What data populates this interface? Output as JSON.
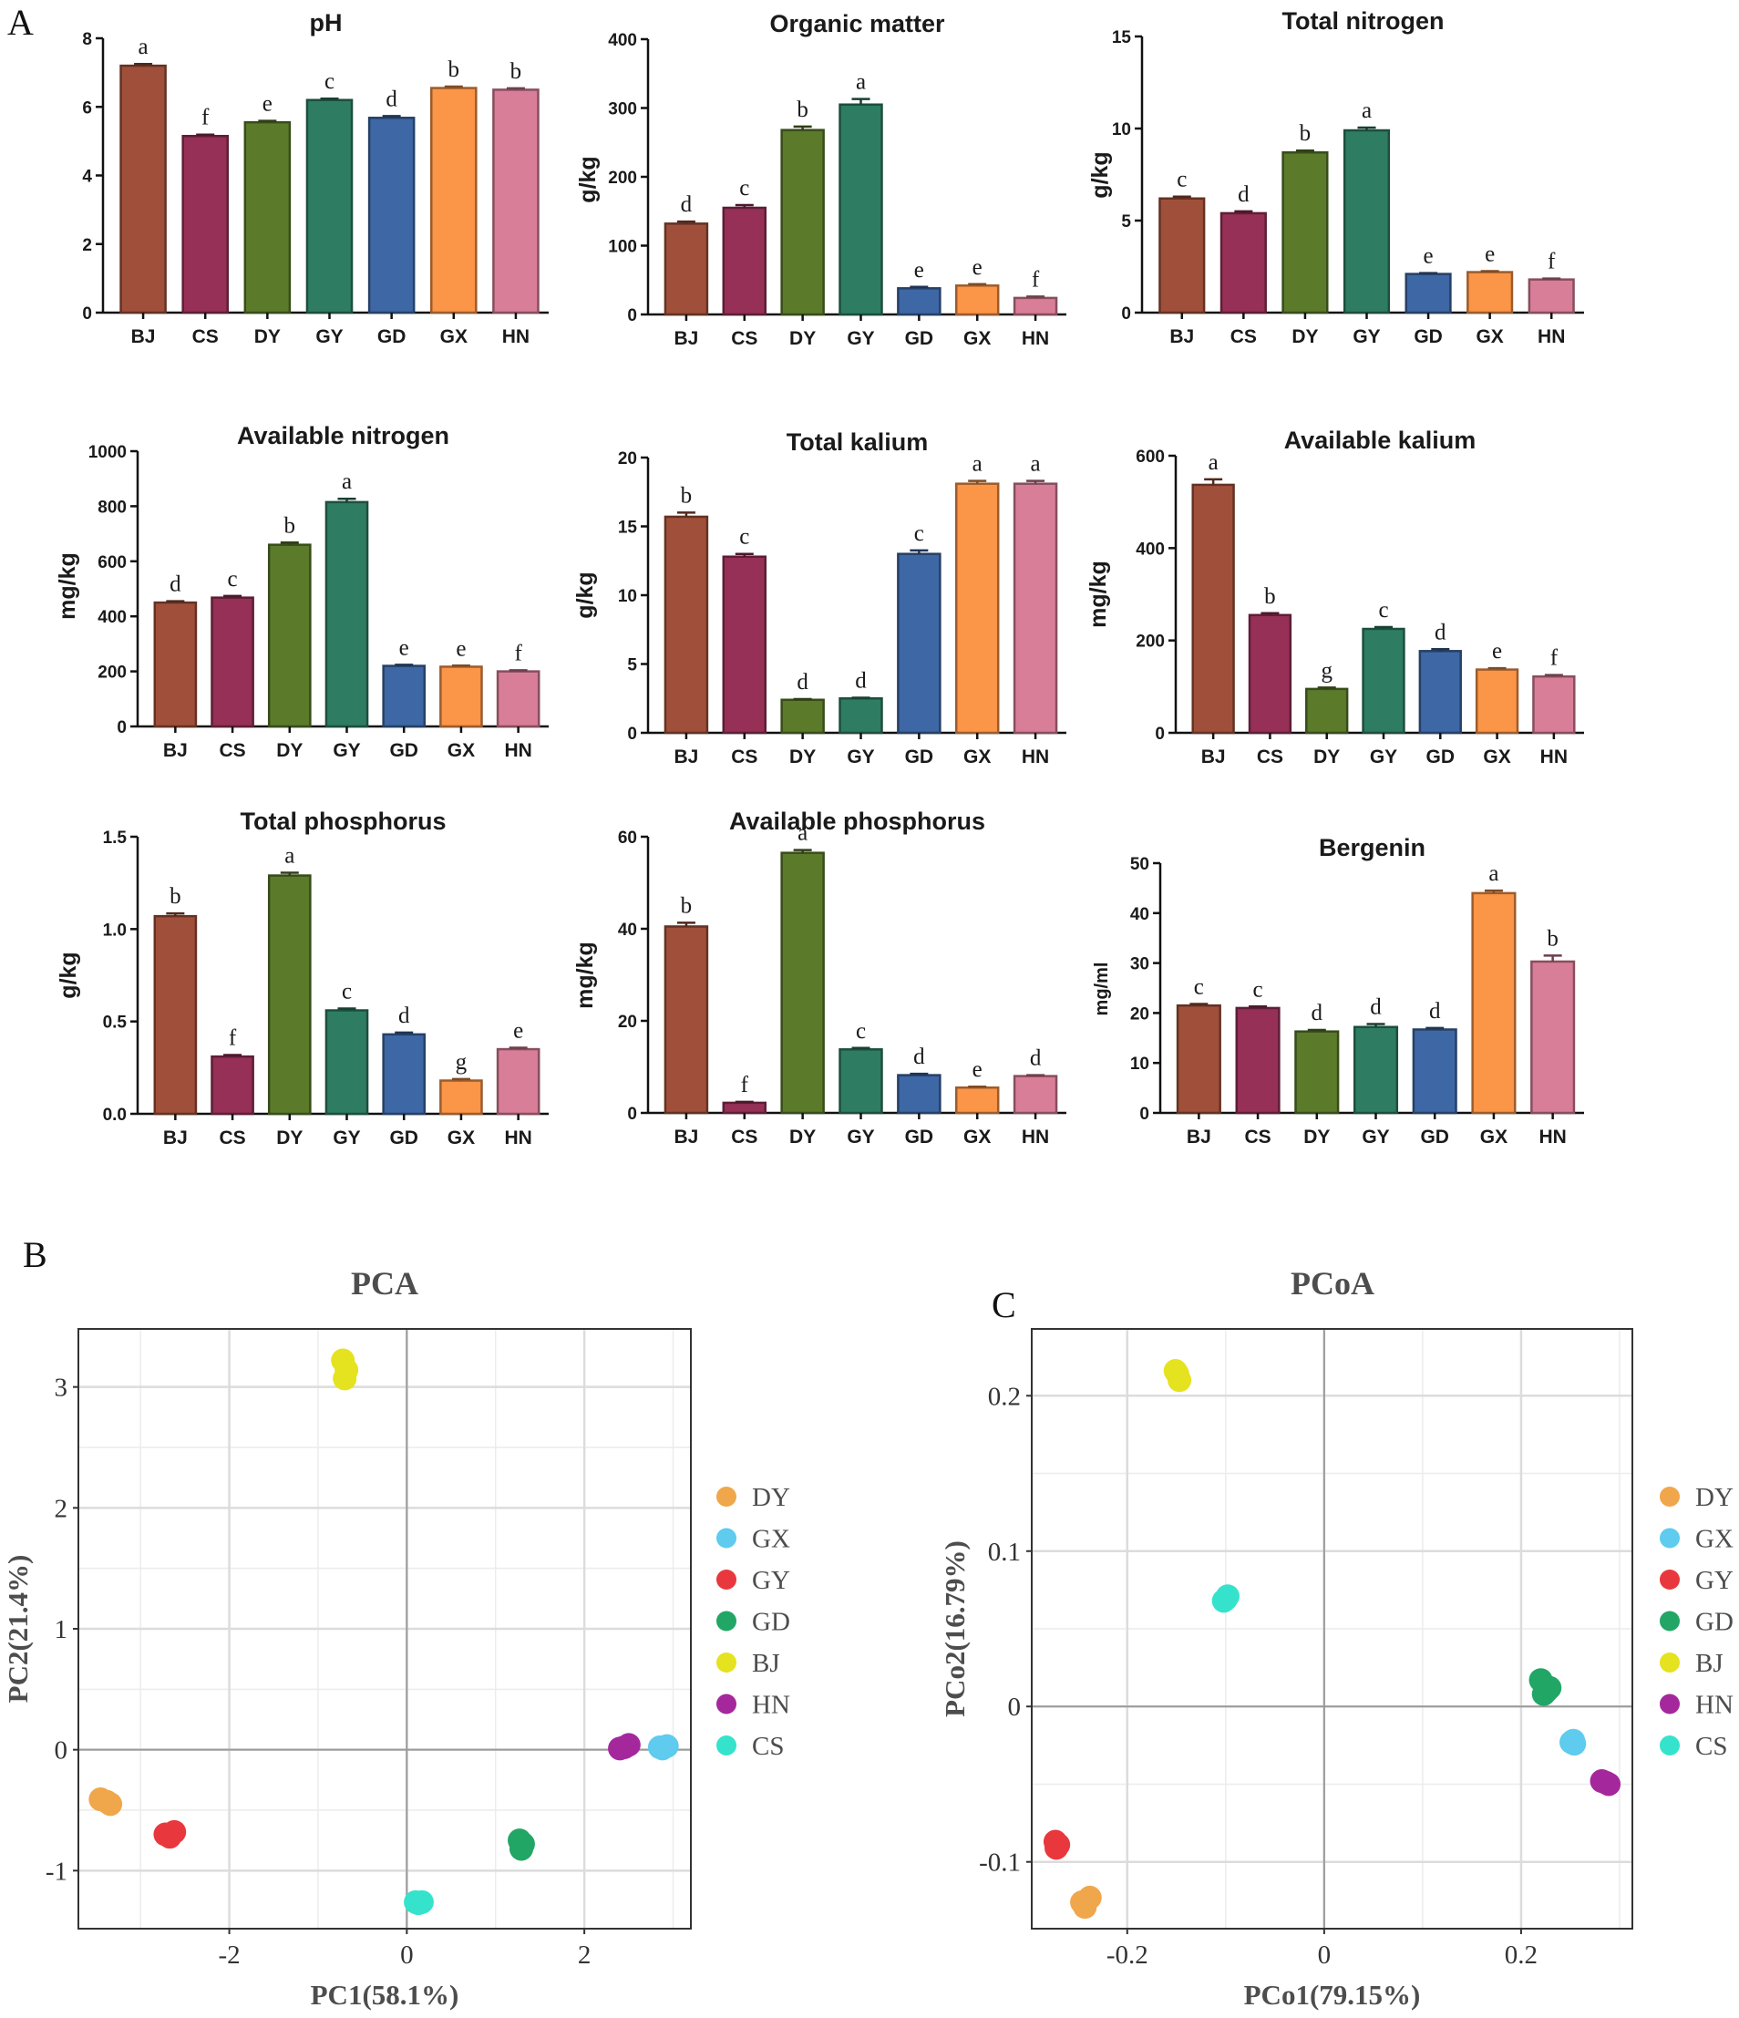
{
  "figure": {
    "panel_labels": [
      "A",
      "B",
      "C"
    ],
    "palette": {
      "BJ": "#a0503a",
      "CS": "#963057",
      "DY": "#5b7b2b",
      "GY": "#2e7d63",
      "GD": "#3e67a5",
      "GX": "#fb9548",
      "HN": "#d97e98"
    },
    "scatter_colors": {
      "DY": "#f0a64a",
      "GX": "#5ecbef",
      "GY": "#e8383d",
      "GD": "#21a665",
      "BJ": "#e5e21f",
      "HN": "#a4289c",
      "CS": "#35e3cc"
    }
  },
  "chart_data": [
    {
      "type": "bar",
      "title": "pH",
      "ylabel": "",
      "ylim": [
        0,
        8
      ],
      "yticks": [
        "0",
        "2",
        "4",
        "6",
        "8"
      ],
      "categories": [
        "BJ",
        "CS",
        "DY",
        "GY",
        "GD",
        "GX",
        "HN"
      ],
      "values": [
        7.2,
        5.15,
        5.55,
        6.2,
        5.68,
        6.55,
        6.5
      ],
      "errors": [
        0.05,
        0.04,
        0.04,
        0.04,
        0.05,
        0.04,
        0.04
      ],
      "letters": [
        "a",
        "f",
        "e",
        "c",
        "d",
        "b",
        "b"
      ]
    },
    {
      "type": "bar",
      "title": "Organic matter",
      "ylabel": "g/kg",
      "ylim": [
        0,
        400
      ],
      "yticks": [
        "0",
        "100",
        "200",
        "300",
        "400"
      ],
      "categories": [
        "BJ",
        "CS",
        "DY",
        "GY",
        "GD",
        "GX",
        "HN"
      ],
      "values": [
        132,
        155,
        268,
        305,
        38,
        42,
        24
      ],
      "errors": [
        3,
        4,
        5,
        8,
        2,
        2,
        2
      ],
      "letters": [
        "d",
        "c",
        "b",
        "a",
        "e",
        "e",
        "f"
      ]
    },
    {
      "type": "bar",
      "title": "Total nitrogen",
      "ylabel": "g/kg",
      "ylim": [
        0,
        15
      ],
      "yticks": [
        "0",
        "5",
        "10",
        "15"
      ],
      "categories": [
        "BJ",
        "CS",
        "DY",
        "GY",
        "GD",
        "GX",
        "HN"
      ],
      "values": [
        6.2,
        5.4,
        8.7,
        9.9,
        2.1,
        2.2,
        1.8
      ],
      "errors": [
        0.1,
        0.1,
        0.1,
        0.15,
        0.05,
        0.05,
        0.05
      ],
      "letters": [
        "c",
        "d",
        "b",
        "a",
        "e",
        "e",
        "f"
      ]
    },
    {
      "type": "bar",
      "title": "Available nitrogen",
      "ylabel": "mg/kg",
      "ylim": [
        0,
        1000
      ],
      "yticks": [
        "0",
        "200",
        "400",
        "600",
        "800",
        "1000"
      ],
      "categories": [
        "BJ",
        "CS",
        "DY",
        "GY",
        "GD",
        "GX",
        "HN"
      ],
      "values": [
        450,
        468,
        660,
        815,
        220,
        217,
        200
      ],
      "errors": [
        5,
        6,
        8,
        12,
        4,
        4,
        4
      ],
      "letters": [
        "d",
        "c",
        "b",
        "a",
        "e",
        "e",
        "f"
      ]
    },
    {
      "type": "bar",
      "title": "Total kalium",
      "ylabel": "g/kg",
      "ylim": [
        0,
        20
      ],
      "yticks": [
        "0",
        "5",
        "10",
        "15",
        "20"
      ],
      "categories": [
        "BJ",
        "CS",
        "DY",
        "GY",
        "GD",
        "GX",
        "HN"
      ],
      "values": [
        15.7,
        12.8,
        2.4,
        2.5,
        13.0,
        18.1,
        18.1
      ],
      "errors": [
        0.3,
        0.2,
        0.05,
        0.05,
        0.25,
        0.2,
        0.2
      ],
      "letters": [
        "b",
        "c",
        "d",
        "d",
        "c",
        "a",
        "a"
      ]
    },
    {
      "type": "bar",
      "title": "Available kalium",
      "ylabel": "mg/kg",
      "ylim": [
        0,
        600
      ],
      "yticks": [
        "0",
        "200",
        "400",
        "600"
      ],
      "categories": [
        "BJ",
        "CS",
        "DY",
        "GY",
        "GD",
        "GX",
        "HN"
      ],
      "values": [
        537,
        255,
        95,
        225,
        177,
        137,
        122
      ],
      "errors": [
        12,
        4,
        3,
        4,
        4,
        3,
        3
      ],
      "letters": [
        "a",
        "b",
        "g",
        "c",
        "d",
        "e",
        "f"
      ]
    },
    {
      "type": "bar",
      "title": "Total phosphorus",
      "ylabel": "g/kg",
      "ylim": [
        0,
        1.5
      ],
      "yticks": [
        "0.0",
        "0.5",
        "1.0",
        "1.5"
      ],
      "categories": [
        "BJ",
        "CS",
        "DY",
        "GY",
        "GD",
        "GX",
        "HN"
      ],
      "values": [
        1.07,
        0.31,
        1.29,
        0.56,
        0.43,
        0.18,
        0.35
      ],
      "errors": [
        0.015,
        0.008,
        0.015,
        0.01,
        0.01,
        0.008,
        0.008
      ],
      "letters": [
        "b",
        "f",
        "a",
        "c",
        "d",
        "g",
        "e"
      ]
    },
    {
      "type": "bar",
      "title": "Available phosphorus",
      "ylabel": "mg/kg",
      "ylim": [
        0,
        60
      ],
      "yticks": [
        "0",
        "20",
        "40",
        "60"
      ],
      "categories": [
        "BJ",
        "CS",
        "DY",
        "GY",
        "GD",
        "GX",
        "HN"
      ],
      "values": [
        40.5,
        2.2,
        56.5,
        13.8,
        8.2,
        5.5,
        8.0
      ],
      "errors": [
        0.8,
        0.2,
        0.6,
        0.3,
        0.3,
        0.2,
        0.2
      ],
      "letters": [
        "b",
        "f",
        "a",
        "c",
        "d",
        "e",
        "d"
      ]
    },
    {
      "type": "bar",
      "title": "Bergenin",
      "ylabel": "mg/ml",
      "ylim": [
        0,
        50
      ],
      "yticks": [
        "0",
        "10",
        "20",
        "30",
        "40",
        "50"
      ],
      "categories": [
        "BJ",
        "CS",
        "DY",
        "GY",
        "GD",
        "GX",
        "HN"
      ],
      "values": [
        21.5,
        21.0,
        16.3,
        17.2,
        16.7,
        44.0,
        30.3
      ],
      "errors": [
        0.3,
        0.3,
        0.3,
        0.6,
        0.3,
        0.5,
        1.2
      ],
      "letters": [
        "c",
        "c",
        "d",
        "d",
        "d",
        "a",
        "b"
      ]
    },
    {
      "type": "scatter",
      "title": "PCA",
      "xlabel": "PC1(58.1%)",
      "ylabel": "PC2(21.4%)",
      "xlim": [
        -3.7,
        3.2
      ],
      "ylim": [
        -1.48,
        3.48
      ],
      "xticks": [
        -2,
        0,
        2
      ],
      "xtick_labels": [
        "-2",
        "0",
        "2"
      ],
      "yticks": [
        -1,
        0,
        1,
        2,
        3
      ],
      "ytick_labels": [
        "-1",
        "0",
        "1",
        "2",
        "3"
      ],
      "legend": [
        "DY",
        "GX",
        "GY",
        "GD",
        "BJ",
        "HN",
        "CS"
      ],
      "series": [
        {
          "name": "DY",
          "points": [
            [
              -3.45,
              -0.41
            ],
            [
              -3.38,
              -0.43
            ],
            [
              -3.34,
              -0.45
            ]
          ]
        },
        {
          "name": "GX",
          "points": [
            [
              2.85,
              0.02
            ],
            [
              2.93,
              0.03
            ],
            [
              2.88,
              0.01
            ]
          ]
        },
        {
          "name": "GY",
          "points": [
            [
              -2.72,
              -0.7
            ],
            [
              -2.62,
              -0.68
            ],
            [
              -2.67,
              -0.72
            ]
          ]
        },
        {
          "name": "GD",
          "points": [
            [
              1.27,
              -0.75
            ],
            [
              1.31,
              -0.78
            ],
            [
              1.29,
              -0.82
            ]
          ]
        },
        {
          "name": "BJ",
          "points": [
            [
              -0.72,
              3.22
            ],
            [
              -0.68,
              3.14
            ],
            [
              -0.7,
              3.07
            ]
          ]
        },
        {
          "name": "HN",
          "points": [
            [
              2.4,
              0.01
            ],
            [
              2.5,
              0.04
            ],
            [
              2.45,
              0.02
            ]
          ]
        },
        {
          "name": "CS",
          "points": [
            [
              0.1,
              -1.26
            ],
            [
              0.17,
              -1.26
            ],
            [
              0.13,
              -1.27
            ]
          ]
        }
      ]
    },
    {
      "type": "scatter",
      "title": "PCoA",
      "xlabel": "PCo1(79.15%)",
      "ylabel": "PCo2(16.79%)",
      "xlim": [
        -0.297,
        0.313
      ],
      "ylim": [
        -0.143,
        0.243
      ],
      "xticks": [
        -0.2,
        0,
        0.2
      ],
      "xtick_labels": [
        "-0.2",
        "0",
        "0.2"
      ],
      "yticks": [
        -0.1,
        0,
        0.1,
        0.2
      ],
      "ytick_labels": [
        "-0.1",
        "0",
        "0.1",
        "0.2"
      ],
      "legend": [
        "DY",
        "GX",
        "GY",
        "GD",
        "BJ",
        "HN",
        "CS"
      ],
      "series": [
        {
          "name": "DY",
          "points": [
            [
              -0.246,
              -0.126
            ],
            [
              -0.238,
              -0.123
            ],
            [
              -0.243,
              -0.129
            ]
          ]
        },
        {
          "name": "GX",
          "points": [
            [
              0.251,
              -0.023
            ],
            [
              0.254,
              -0.024
            ],
            [
              0.253,
              -0.022
            ]
          ]
        },
        {
          "name": "GY",
          "points": [
            [
              -0.273,
              -0.087
            ],
            [
              -0.27,
              -0.089
            ],
            [
              -0.272,
              -0.091
            ]
          ]
        },
        {
          "name": "GD",
          "points": [
            [
              0.22,
              0.017
            ],
            [
              0.226,
              0.01
            ],
            [
              0.229,
              0.012
            ],
            [
              0.223,
              0.008
            ]
          ]
        },
        {
          "name": "BJ",
          "points": [
            [
              -0.151,
              0.216
            ],
            [
              -0.147,
              0.21
            ],
            [
              -0.149,
              0.214
            ]
          ]
        },
        {
          "name": "HN",
          "points": [
            [
              0.282,
              -0.048
            ],
            [
              0.289,
              -0.05
            ],
            [
              0.286,
              -0.049
            ]
          ]
        },
        {
          "name": "CS",
          "points": [
            [
              -0.102,
              0.068
            ],
            [
              -0.098,
              0.071
            ],
            [
              -0.1,
              0.069
            ]
          ]
        }
      ]
    }
  ]
}
